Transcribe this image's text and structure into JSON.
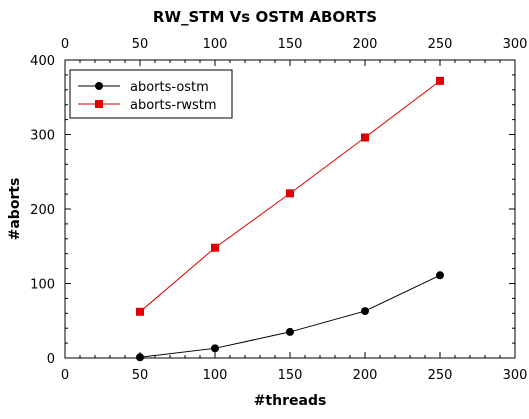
{
  "chart_data": {
    "type": "line",
    "title": "RW_STM Vs OSTM ABORTS",
    "xlabel": "#threads",
    "ylabel": "#aborts",
    "xlim": [
      0,
      300
    ],
    "ylim": [
      0,
      400
    ],
    "x_ticks": [
      "0",
      "50",
      "100",
      "150",
      "200",
      "250",
      "300"
    ],
    "x_top_ticks": [
      "0",
      "50",
      "100",
      "150",
      "200",
      "250",
      "300"
    ],
    "y_ticks": [
      "0",
      "100",
      "200",
      "300",
      "400"
    ],
    "x": [
      50,
      100,
      150,
      200,
      250
    ],
    "grid": false,
    "legend_position": "top-left",
    "series": [
      {
        "name": "aborts-ostm",
        "values": [
          1,
          13,
          35,
          63,
          111
        ],
        "color": "#000000",
        "marker": "circle"
      },
      {
        "name": "aborts-rwstm",
        "values": [
          62,
          148,
          221,
          296,
          372
        ],
        "color": "#e00000",
        "marker": "square"
      }
    ]
  }
}
